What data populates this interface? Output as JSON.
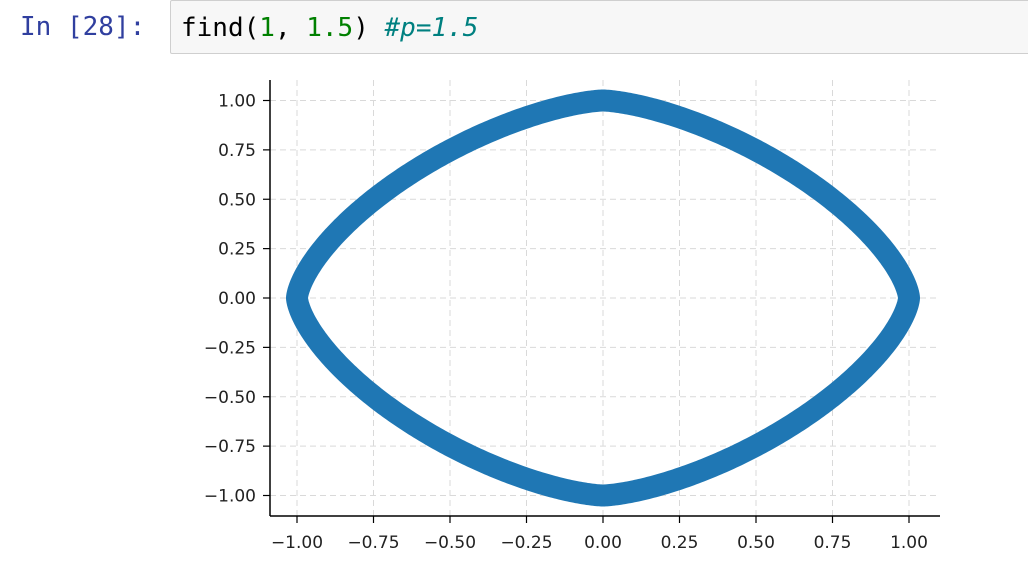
{
  "cell": {
    "prompt": "In [28]:",
    "code": {
      "func": "find(",
      "arg1": "1",
      "sep": ", ",
      "arg2": "1.5",
      "close": ") ",
      "comment": "#p=1.5"
    }
  },
  "chart_data": {
    "type": "scatter",
    "curve": "superellipse |x|^p + |y|^p = 1",
    "p": 1.5,
    "color": "#1f77b4",
    "grid": true,
    "xlim": [
      -1.05,
      1.1
    ],
    "ylim": [
      -1.05,
      1.1
    ],
    "x_ticks": [
      -1.0,
      -0.75,
      -0.5,
      -0.25,
      0.0,
      0.25,
      0.5,
      0.75,
      1.0
    ],
    "y_ticks": [
      -1.0,
      -0.75,
      -0.5,
      -0.25,
      0.0,
      0.25,
      0.5,
      0.75,
      1.0
    ],
    "x_tick_labels": [
      "−1.00",
      "−0.75",
      "−0.50",
      "−0.25",
      "0.00",
      "0.25",
      "0.50",
      "0.75",
      "1.00"
    ],
    "y_tick_labels": [
      "−1.00",
      "−0.75",
      "−0.50",
      "−0.25",
      "0.00",
      "0.25",
      "0.50",
      "0.75",
      "1.00"
    ]
  }
}
